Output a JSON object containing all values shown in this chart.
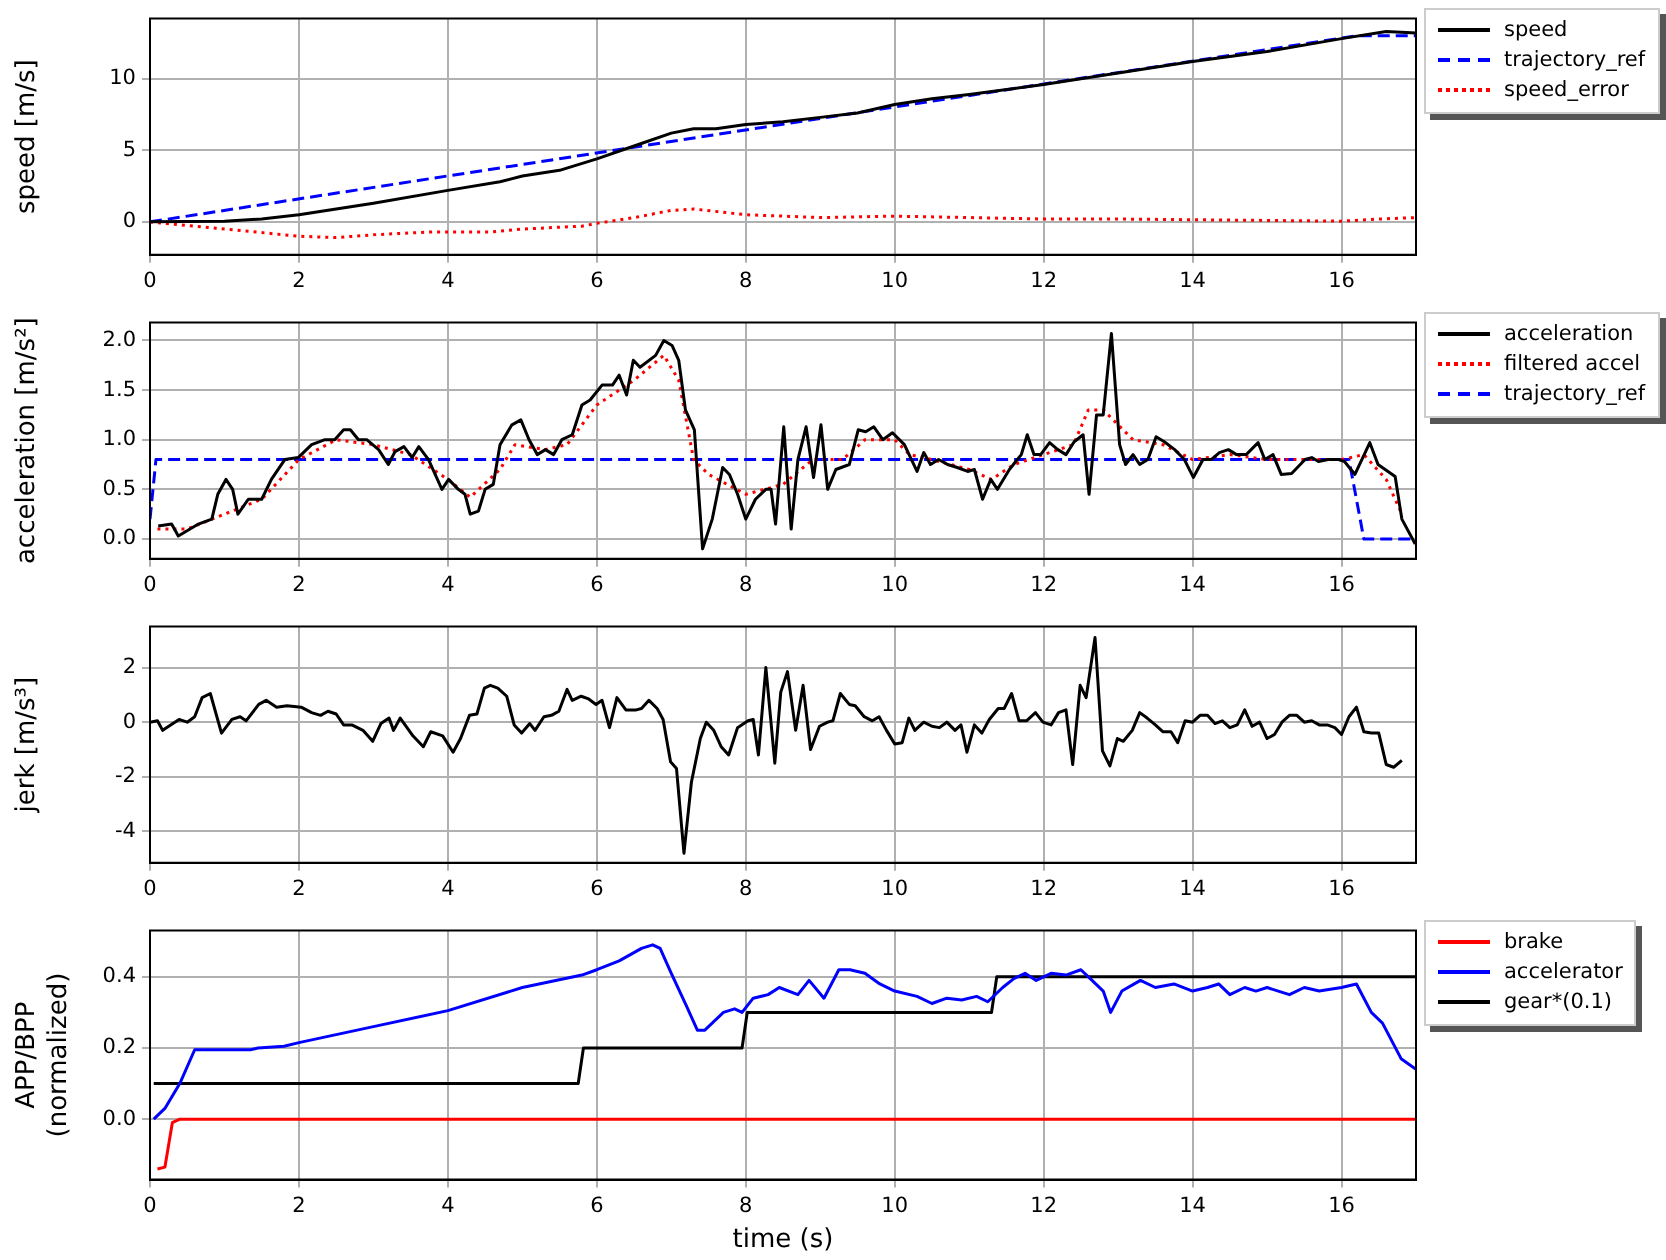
{
  "chart_data": [
    {
      "type": "line",
      "ylabel": "speed [m/s]",
      "xlim": [
        0,
        17
      ],
      "xticks": [
        0,
        2,
        4,
        6,
        8,
        10,
        12,
        14,
        16
      ],
      "ylim": [
        -2.3,
        14.2
      ],
      "yticks": [
        0,
        5,
        10
      ],
      "grid": true,
      "legend": "right",
      "marker": "none",
      "series": [
        {
          "name": "speed",
          "color": "#000000",
          "line_style": "solid",
          "x": [
            0,
            1,
            1.5,
            2,
            3,
            4,
            4.7,
            5,
            5.5,
            6,
            6.5,
            7,
            7.3,
            7.6,
            8,
            8.5,
            9,
            9.5,
            10,
            10.5,
            11,
            12,
            13,
            14,
            15,
            16,
            16.6,
            17
          ],
          "values": [
            0,
            0.05,
            0.2,
            0.5,
            1.3,
            2.2,
            2.8,
            3.2,
            3.6,
            4.4,
            5.3,
            6.2,
            6.5,
            6.5,
            6.8,
            7.0,
            7.3,
            7.6,
            8.2,
            8.6,
            8.9,
            9.6,
            10.4,
            11.2,
            11.9,
            12.8,
            13.3,
            13.2
          ]
        },
        {
          "name": "trajectory_ref",
          "color": "#0000ff",
          "line_style": "dashed",
          "x": [
            0,
            16.2,
            17
          ],
          "values": [
            0,
            13,
            13
          ]
        },
        {
          "name": "speed_error",
          "color": "#ff0000",
          "line_style": "dotted",
          "x": [
            0,
            1,
            2,
            2.5,
            3,
            3.8,
            4.6,
            5,
            5.8,
            6,
            6.5,
            7,
            7.3,
            8,
            9,
            10,
            11,
            12,
            13,
            14,
            15,
            16,
            16.5,
            17
          ],
          "values": [
            0,
            -0.5,
            -1.0,
            -1.1,
            -0.9,
            -0.7,
            -0.7,
            -0.5,
            -0.3,
            -0.1,
            0.3,
            0.8,
            0.9,
            0.5,
            0.3,
            0.4,
            0.3,
            0.2,
            0.2,
            0.15,
            0.1,
            0.05,
            0.2,
            0.3
          ]
        }
      ]
    },
    {
      "type": "line",
      "ylabel": "acceleration [m/s²]",
      "xlim": [
        0,
        17
      ],
      "xticks": [
        0,
        2,
        4,
        6,
        8,
        10,
        12,
        14,
        16
      ],
      "ylim": [
        -0.2,
        2.18
      ],
      "yticks": [
        {
          "value": 0,
          "label": "0.0"
        },
        {
          "value": 0.5,
          "label": "0.5"
        },
        {
          "value": 1,
          "label": "1.0"
        },
        {
          "value": 1.5,
          "label": "1.5"
        },
        {
          "value": 2,
          "label": "2.0"
        }
      ],
      "grid": true,
      "legend": "right",
      "marker": "none",
      "series": [
        {
          "name": "acceleration",
          "color": "#000000",
          "line_style": "solid",
          "x": [
            0.11,
            0.29,
            0.38,
            0.65,
            0.83,
            0.91,
            1.02,
            1.11,
            1.18,
            1.32,
            1.5,
            1.63,
            1.81,
            1.99,
            2.17,
            2.35,
            2.48,
            2.6,
            2.69,
            2.8,
            2.91,
            3.07,
            3.2,
            3.29,
            3.41,
            3.52,
            3.61,
            3.74,
            3.92,
            4.01,
            4.14,
            4.23,
            4.3,
            4.41,
            4.5,
            4.61,
            4.7,
            4.86,
            4.98,
            5.09,
            5.2,
            5.31,
            5.42,
            5.53,
            5.67,
            5.8,
            5.91,
            6.07,
            6.21,
            6.3,
            6.4,
            6.49,
            6.58,
            6.79,
            6.9,
            7.01,
            7.1,
            7.19,
            7.31,
            7.42,
            7.55,
            7.69,
            7.78,
            7.89,
            8.0,
            8.13,
            8.27,
            8.34,
            8.4,
            8.51,
            8.61,
            8.7,
            8.81,
            8.91,
            9.01,
            9.1,
            9.21,
            9.39,
            9.51,
            9.61,
            9.72,
            9.84,
            9.97,
            10.13,
            10.3,
            10.39,
            10.48,
            10.59,
            10.71,
            10.84,
            10.98,
            11.07,
            11.18,
            11.29,
            11.38,
            11.54,
            11.7,
            11.78,
            11.87,
            11.96,
            12.08,
            12.19,
            12.3,
            12.41,
            12.53,
            12.61,
            12.71,
            12.8,
            12.91,
            13.02,
            13.1,
            13.2,
            13.29,
            13.4,
            13.51,
            13.62,
            13.76,
            13.89,
            14.01,
            14.14,
            14.25,
            14.36,
            14.48,
            14.59,
            14.72,
            14.88,
            14.97,
            15.08,
            15.19,
            15.33,
            15.51,
            15.6,
            15.69,
            15.82,
            15.96,
            16.04,
            16.18,
            16.38,
            16.49,
            16.72,
            16.81,
            16.99
          ],
          "values": [
            0.13,
            0.15,
            0.03,
            0.15,
            0.2,
            0.45,
            0.6,
            0.5,
            0.25,
            0.4,
            0.4,
            0.6,
            0.8,
            0.82,
            0.95,
            1.0,
            1.0,
            1.1,
            1.1,
            1.0,
            1.0,
            0.9,
            0.75,
            0.88,
            0.93,
            0.82,
            0.93,
            0.8,
            0.5,
            0.6,
            0.5,
            0.45,
            0.25,
            0.28,
            0.5,
            0.55,
            0.95,
            1.15,
            1.2,
            1.0,
            0.85,
            0.9,
            0.85,
            1.0,
            1.05,
            1.35,
            1.4,
            1.55,
            1.55,
            1.65,
            1.45,
            1.8,
            1.73,
            1.85,
            2.0,
            1.95,
            1.8,
            1.3,
            1.1,
            -0.1,
            0.2,
            0.72,
            0.65,
            0.45,
            0.2,
            0.4,
            0.5,
            0.5,
            0.15,
            1.13,
            0.1,
            0.8,
            1.13,
            0.62,
            1.15,
            0.5,
            0.7,
            0.75,
            1.1,
            1.08,
            1.13,
            1.0,
            1.07,
            0.95,
            0.68,
            0.87,
            0.75,
            0.8,
            0.75,
            0.72,
            0.68,
            0.7,
            0.4,
            0.6,
            0.5,
            0.7,
            0.85,
            1.05,
            0.85,
            0.85,
            0.97,
            0.9,
            0.85,
            0.98,
            1.05,
            0.45,
            1.25,
            1.25,
            2.07,
            0.95,
            0.75,
            0.85,
            0.75,
            0.8,
            1.03,
            0.98,
            0.9,
            0.8,
            0.62,
            0.8,
            0.8,
            0.87,
            0.9,
            0.85,
            0.85,
            0.97,
            0.8,
            0.85,
            0.65,
            0.66,
            0.8,
            0.82,
            0.78,
            0.8,
            0.8,
            0.78,
            0.65,
            0.97,
            0.75,
            0.63,
            0.2,
            -0.05
          ]
        },
        {
          "name": "filtered accel",
          "color": "#ff0000",
          "line_style": "dotted",
          "x": [
            0.1,
            0.5,
            1.0,
            1.5,
            2.0,
            2.5,
            3.0,
            3.5,
            4.0,
            4.3,
            4.7,
            4.9,
            5.3,
            5.6,
            6.0,
            6.5,
            6.9,
            7.1,
            7.3,
            7.5,
            8.0,
            8.5,
            8.9,
            9.3,
            9.6,
            10.0,
            10.2,
            10.5,
            11.0,
            11.3,
            11.6,
            12.0,
            12.4,
            12.6,
            12.8,
            13.2,
            13.6,
            14.0,
            14.5,
            15.0,
            15.5,
            16.0,
            16.3,
            16.6,
            16.81
          ],
          "values": [
            0.1,
            0.1,
            0.25,
            0.4,
            0.8,
            1.0,
            0.95,
            0.85,
            0.6,
            0.42,
            0.7,
            0.95,
            0.9,
            0.95,
            1.35,
            1.6,
            1.85,
            1.6,
            0.8,
            0.65,
            0.45,
            0.55,
            0.8,
            0.8,
            1.0,
            1.0,
            0.85,
            0.8,
            0.7,
            0.6,
            0.75,
            0.85,
            0.95,
            1.3,
            1.3,
            1.0,
            0.95,
            0.8,
            0.85,
            0.8,
            0.8,
            0.8,
            0.85,
            0.6,
            0.25
          ]
        },
        {
          "name": "trajectory_ref",
          "color": "#0000ff",
          "line_style": "dashed",
          "x": [
            0,
            0.08,
            16.1,
            16.3,
            17
          ],
          "values": [
            0.2,
            0.8,
            0.8,
            0,
            0
          ]
        }
      ]
    },
    {
      "type": "line",
      "ylabel": "jerk [m/s³]",
      "xlim": [
        0,
        17
      ],
      "xticks": [
        0,
        2,
        4,
        6,
        8,
        10,
        12,
        14,
        16
      ],
      "ylim": [
        -5.15,
        3.5
      ],
      "yticks": [
        -4,
        -2,
        0,
        2
      ],
      "grid": true,
      "marker": "none",
      "series": [
        {
          "color": "#000000",
          "line_style": "solid",
          "x": [
            0,
            0.1,
            0.17,
            0.39,
            0.5,
            0.6,
            0.7,
            0.81,
            0.96,
            1.1,
            1.21,
            1.29,
            1.46,
            1.56,
            1.7,
            1.84,
            2.03,
            2.17,
            2.29,
            2.39,
            2.5,
            2.6,
            2.71,
            2.86,
            2.99,
            3.1,
            3.21,
            3.27,
            3.36,
            3.53,
            3.67,
            3.77,
            3.93,
            4.07,
            4.17,
            4.29,
            4.39,
            4.49,
            4.57,
            4.67,
            4.79,
            4.89,
            4.99,
            5.1,
            5.17,
            5.29,
            5.39,
            5.49,
            5.6,
            5.67,
            5.79,
            5.89,
            5.99,
            6.07,
            6.17,
            6.27,
            6.39,
            6.53,
            6.6,
            6.7,
            6.81,
            6.89,
            6.99,
            7.07,
            7.17,
            7.27,
            7.39,
            7.47,
            7.57,
            7.67,
            7.77,
            7.89,
            8.03,
            8.1,
            8.17,
            8.27,
            8.39,
            8.47,
            8.56,
            8.67,
            8.77,
            8.87,
            8.99,
            9.1,
            9.17,
            9.27,
            9.39,
            9.47,
            9.59,
            9.7,
            9.79,
            9.89,
            10.0,
            10.1,
            10.19,
            10.27,
            10.39,
            10.5,
            10.6,
            10.7,
            10.81,
            10.89,
            10.97,
            11.07,
            11.17,
            11.27,
            11.39,
            11.47,
            11.57,
            11.67,
            11.77,
            11.89,
            11.99,
            12.1,
            12.2,
            12.3,
            12.39,
            12.49,
            12.57,
            12.69,
            12.79,
            12.89,
            12.99,
            13.07,
            13.19,
            13.29,
            13.39,
            13.5,
            13.6,
            13.71,
            13.8,
            13.9,
            14.0,
            14.1,
            14.2,
            14.3,
            14.4,
            14.5,
            14.6,
            14.7,
            14.8,
            14.9,
            15.0,
            15.1,
            15.2,
            15.3,
            15.4,
            15.5,
            15.6,
            15.7,
            15.81,
            15.91,
            16.0,
            16.1,
            16.2,
            16.3,
            16.4,
            16.5,
            16.6,
            16.7,
            16.81
          ],
          "values": [
            0,
            0.05,
            -0.3,
            0.1,
            0.0,
            0.2,
            0.9,
            1.05,
            -0.4,
            0.1,
            0.2,
            0.05,
            0.65,
            0.8,
            0.55,
            0.6,
            0.55,
            0.35,
            0.25,
            0.4,
            0.3,
            -0.1,
            -0.1,
            -0.3,
            -0.7,
            -0.05,
            0.15,
            -0.3,
            0.15,
            -0.5,
            -0.9,
            -0.35,
            -0.5,
            -1.1,
            -0.6,
            0.25,
            0.3,
            1.25,
            1.35,
            1.25,
            0.95,
            -0.1,
            -0.4,
            -0.05,
            -0.3,
            0.2,
            0.25,
            0.4,
            1.2,
            0.8,
            0.95,
            0.85,
            0.65,
            0.8,
            -0.2,
            0.9,
            0.45,
            0.45,
            0.5,
            0.8,
            0.5,
            0.1,
            -1.45,
            -1.7,
            -4.8,
            -2.2,
            -0.6,
            0.0,
            -0.3,
            -0.9,
            -1.2,
            -0.2,
            0.05,
            0.1,
            -1.2,
            2.0,
            -1.5,
            1.1,
            1.85,
            -0.3,
            1.35,
            -1.0,
            -0.15,
            0.0,
            0.05,
            1.05,
            0.65,
            0.6,
            0.2,
            0.05,
            0.2,
            -0.3,
            -0.8,
            -0.75,
            0.15,
            -0.3,
            0.0,
            -0.15,
            -0.2,
            0.0,
            -0.3,
            -0.1,
            -1.1,
            -0.1,
            -0.4,
            0.1,
            0.5,
            0.5,
            1.05,
            0.05,
            0.05,
            0.35,
            0.0,
            -0.1,
            0.35,
            0.45,
            -1.55,
            1.35,
            0.9,
            3.1,
            -1.05,
            -1.6,
            -0.6,
            -0.7,
            -0.3,
            0.35,
            0.15,
            -0.1,
            -0.35,
            -0.35,
            -0.75,
            0.05,
            0.0,
            0.25,
            0.25,
            -0.05,
            0.05,
            -0.2,
            -0.1,
            0.45,
            -0.15,
            0.0,
            -0.6,
            -0.45,
            0.0,
            0.25,
            0.25,
            0.0,
            0.05,
            -0.1,
            -0.1,
            -0.2,
            -0.45,
            0.2,
            0.55,
            -0.35,
            -0.4,
            -0.4,
            -1.55,
            -1.65,
            -1.4
          ]
        }
      ]
    },
    {
      "type": "line",
      "ylabel": "APP/BPP\n(normalized)",
      "xlabel": "time (s)",
      "xlim": [
        0,
        17
      ],
      "xticks": [
        0,
        2,
        4,
        6,
        8,
        10,
        12,
        14,
        16
      ],
      "ylim": [
        -0.17,
        0.53
      ],
      "yticks": [
        {
          "value": 0,
          "label": "0.0"
        },
        {
          "value": 0.2,
          "label": "0.2"
        },
        {
          "value": 0.4,
          "label": "0.4"
        }
      ],
      "grid": true,
      "legend": "right",
      "marker": "none",
      "series": [
        {
          "name": "brake",
          "color": "#ff0000",
          "line_style": "solid",
          "x": [
            0.1,
            0.2,
            0.3,
            0.4,
            17
          ],
          "values": [
            -0.14,
            -0.135,
            -0.01,
            0,
            0
          ]
        },
        {
          "name": "accelerator",
          "color": "#0000ff",
          "line_style": "solid",
          "x": [
            0.05,
            0.2,
            0.4,
            0.6,
            1.0,
            1.35,
            1.45,
            1.8,
            2.0,
            3,
            4,
            5,
            5.8,
            6.0,
            6.3,
            6.6,
            6.75,
            6.85,
            7.0,
            7.2,
            7.35,
            7.45,
            7.7,
            7.85,
            7.95,
            8.1,
            8.3,
            8.45,
            8.7,
            8.85,
            9.05,
            9.25,
            9.4,
            9.6,
            9.8,
            10,
            10.3,
            10.5,
            10.7,
            10.9,
            11.1,
            11.25,
            11.45,
            11.6,
            11.75,
            11.9,
            12.1,
            12.3,
            12.5,
            12.65,
            12.8,
            12.9,
            13.05,
            13.3,
            13.5,
            13.75,
            14,
            14.2,
            14.35,
            14.5,
            14.7,
            14.85,
            15.0,
            15.3,
            15.5,
            15.7,
            16.0,
            16.2,
            16.4,
            16.55,
            16.8,
            17.0
          ],
          "values": [
            0.0,
            0.03,
            0.1,
            0.195,
            0.195,
            0.195,
            0.2,
            0.205,
            0.215,
            0.26,
            0.305,
            0.37,
            0.405,
            0.42,
            0.445,
            0.48,
            0.49,
            0.48,
            0.41,
            0.32,
            0.25,
            0.25,
            0.3,
            0.31,
            0.3,
            0.34,
            0.35,
            0.37,
            0.35,
            0.39,
            0.34,
            0.42,
            0.42,
            0.41,
            0.38,
            0.36,
            0.345,
            0.325,
            0.34,
            0.335,
            0.345,
            0.33,
            0.37,
            0.395,
            0.41,
            0.39,
            0.41,
            0.405,
            0.42,
            0.39,
            0.36,
            0.3,
            0.36,
            0.39,
            0.37,
            0.38,
            0.36,
            0.37,
            0.38,
            0.35,
            0.37,
            0.36,
            0.37,
            0.35,
            0.37,
            0.36,
            0.37,
            0.38,
            0.3,
            0.27,
            0.17,
            0.14
          ]
        },
        {
          "name": "gear*(0.1)",
          "color": "#000000",
          "line_style": "solid",
          "x": [
            0.05,
            5.75,
            5.82,
            7.95,
            8.02,
            11.3,
            11.37,
            17
          ],
          "values": [
            0.1,
            0.1,
            0.2,
            0.2,
            0.3,
            0.3,
            0.4,
            0.4
          ]
        }
      ]
    }
  ]
}
